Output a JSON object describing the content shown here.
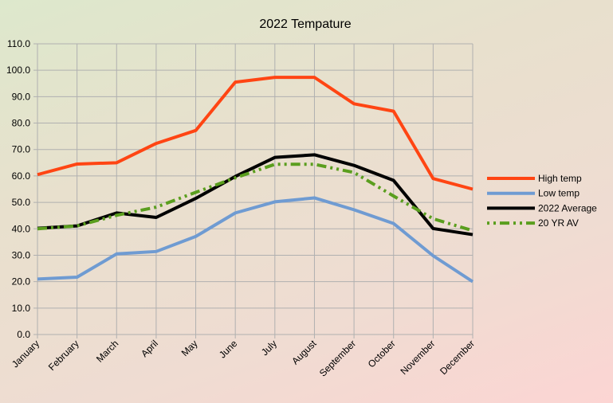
{
  "chart_data": {
    "type": "line",
    "title": "2022 Tempature",
    "xlabel": "",
    "ylabel": "",
    "ylim": [
      0,
      110
    ],
    "y_ticks": [
      "0.0",
      "10.0",
      "20.0",
      "30.0",
      "40.0",
      "50.0",
      "60.0",
      "70.0",
      "80.0",
      "90.0",
      "100.0",
      "110.0"
    ],
    "y_tick_values": [
      0,
      10,
      20,
      30,
      40,
      50,
      60,
      70,
      80,
      90,
      100,
      110
    ],
    "grid": true,
    "legend_position": "right",
    "categories": [
      "January",
      "February",
      "March",
      "April",
      "May",
      "June",
      "July",
      "August",
      "September",
      "October",
      "November",
      "December"
    ],
    "series": [
      {
        "name": "High temp",
        "color": "#ff4513",
        "style": "solid",
        "values": [
          60.5,
          64.5,
          65.0,
          72.3,
          77.2,
          95.5,
          97.3,
          97.3,
          87.3,
          84.5,
          59.0,
          55.0
        ]
      },
      {
        "name": "Low temp",
        "color": "#6f9bd2",
        "style": "solid",
        "values": [
          21.0,
          21.7,
          30.5,
          31.4,
          37.1,
          46.0,
          50.2,
          51.7,
          47.2,
          42.0,
          29.8,
          20.0
        ]
      },
      {
        "name": "2022 Average",
        "color": "#000000",
        "style": "solid",
        "values": [
          40.2,
          41.1,
          46.0,
          44.3,
          51.5,
          59.8,
          67.0,
          68.0,
          64.0,
          58.3,
          40.1,
          37.8
        ]
      },
      {
        "name": "20 YR AV",
        "color": "#5a9e1e",
        "style": "long-dash-dot-dot",
        "values": [
          40.0,
          41.1,
          45.1,
          48.2,
          53.8,
          59.3,
          64.4,
          64.4,
          61.3,
          52.4,
          43.8,
          39.3
        ]
      }
    ]
  }
}
